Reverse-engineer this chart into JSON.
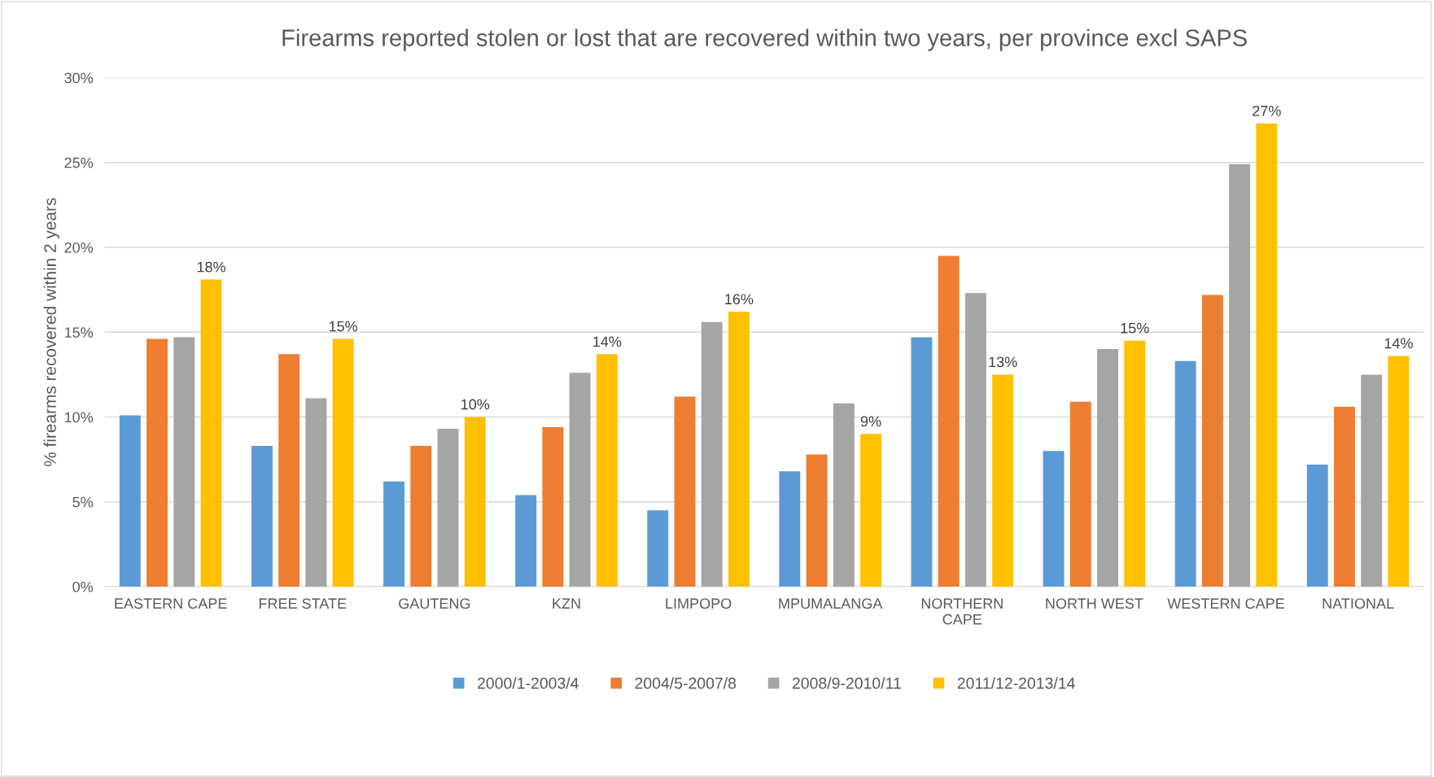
{
  "chart_data": {
    "type": "bar",
    "title": "Firearms reported stolen or lost that are recovered within two years, per province excl SAPS",
    "ylabel": "% firearms recovered within 2 years",
    "categories": [
      "EASTERN CAPE",
      "FREE STATE",
      "GAUTENG",
      "KZN",
      "LIMPOPO",
      "MPUMALANGA",
      "NORTHERN\nCAPE",
      "NORTH WEST",
      "WESTERN CAPE",
      "NATIONAL"
    ],
    "series": [
      {
        "name": "2000/1-2003/4",
        "color": "#5b9bd5",
        "values": [
          10.1,
          8.3,
          6.2,
          5.4,
          4.5,
          6.8,
          14.7,
          8.0,
          13.3,
          7.2
        ]
      },
      {
        "name": "2004/5-2007/8",
        "color": "#ed7d31",
        "values": [
          14.6,
          13.7,
          8.3,
          9.4,
          11.2,
          7.8,
          19.5,
          10.9,
          17.2,
          10.6
        ]
      },
      {
        "name": "2008/9-2010/11",
        "color": "#a5a5a5",
        "values": [
          14.7,
          11.1,
          9.3,
          12.6,
          15.6,
          10.8,
          17.3,
          14.0,
          24.9,
          12.5
        ]
      },
      {
        "name": "2011/12-2013/14",
        "color": "#ffc000",
        "values": [
          18.1,
          14.6,
          10.0,
          13.7,
          16.2,
          9.0,
          12.5,
          14.5,
          27.3,
          13.6
        ],
        "value_labels": [
          "18%",
          "15%",
          "10%",
          "14%",
          "16%",
          "9%",
          "13%",
          "15%",
          "27%",
          "14%"
        ]
      }
    ],
    "ylim": [
      0,
      30
    ],
    "yticks": [
      {
        "value": 0,
        "label": "0%"
      },
      {
        "value": 5,
        "label": "5%"
      },
      {
        "value": 10,
        "label": "10%"
      },
      {
        "value": 15,
        "label": "15%"
      },
      {
        "value": 20,
        "label": "20%"
      },
      {
        "value": 25,
        "label": "25%"
      },
      {
        "value": 30,
        "label": "30%"
      }
    ],
    "grid": "y",
    "legend": "bottom"
  }
}
